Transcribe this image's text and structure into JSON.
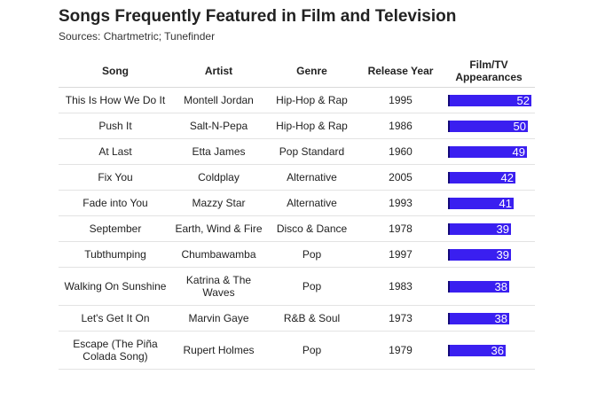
{
  "title": "Songs Frequently Featured in Film and Television",
  "subtitle": "Sources: Chartmetric; Tunefinder",
  "accent_color": "#3a1ff0",
  "chart_data": {
    "type": "table",
    "columns": [
      "Song",
      "Artist",
      "Genre",
      "Release Year",
      "Film/TV Appearances"
    ],
    "bar_max": 52,
    "rows": [
      {
        "song": "This Is How We Do It",
        "artist": "Montell Jordan",
        "genre": "Hip-Hop & Rap",
        "year": "1995",
        "appearances": 52
      },
      {
        "song": "Push It",
        "artist": "Salt-N-Pepa",
        "genre": "Hip-Hop & Rap",
        "year": "1986",
        "appearances": 50
      },
      {
        "song": "At Last",
        "artist": "Etta James",
        "genre": "Pop Standard",
        "year": "1960",
        "appearances": 49
      },
      {
        "song": "Fix You",
        "artist": "Coldplay",
        "genre": "Alternative",
        "year": "2005",
        "appearances": 42
      },
      {
        "song": "Fade into You",
        "artist": "Mazzy Star",
        "genre": "Alternative",
        "year": "1993",
        "appearances": 41
      },
      {
        "song": "September",
        "artist": "Earth, Wind & Fire",
        "genre": "Disco & Dance",
        "year": "1978",
        "appearances": 39
      },
      {
        "song": "Tubthumping",
        "artist": "Chumbawamba",
        "genre": "Pop",
        "year": "1997",
        "appearances": 39
      },
      {
        "song": "Walking On Sunshine",
        "artist": "Katrina & The Waves",
        "genre": "Pop",
        "year": "1983",
        "appearances": 38
      },
      {
        "song": "Let's Get It On",
        "artist": "Marvin Gaye",
        "genre": "R&B & Soul",
        "year": "1973",
        "appearances": 38
      },
      {
        "song": "Escape (The Piña Colada Song)",
        "artist": "Rupert Holmes",
        "genre": "Pop",
        "year": "1979",
        "appearances": 36
      }
    ]
  }
}
